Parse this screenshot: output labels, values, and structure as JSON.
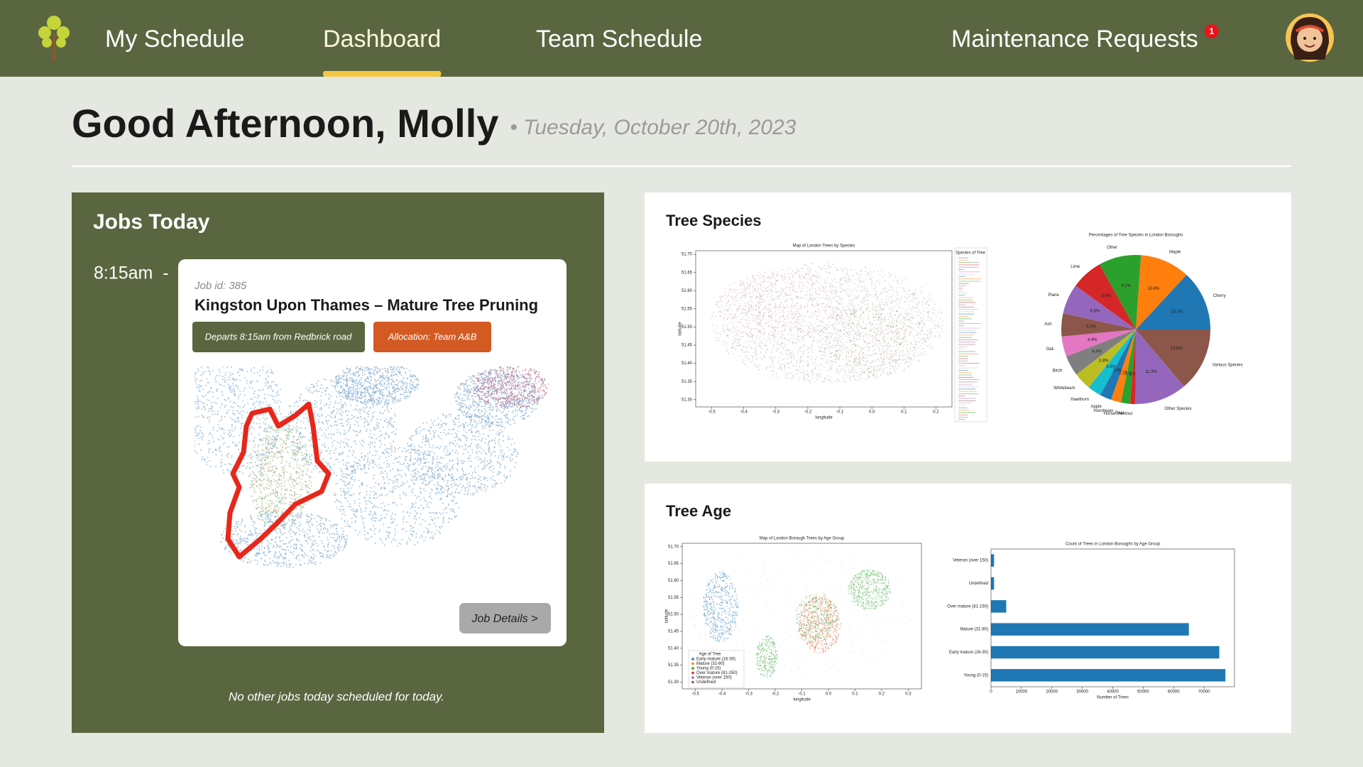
{
  "nav": {
    "items": [
      "My Schedule",
      "Dashboard",
      "Team Schedule",
      "Maintenance Requests"
    ],
    "active": 1,
    "badge": 1
  },
  "header": {
    "greeting": "Good Afternoon, Molly",
    "date": "• Tuesday, October 20th, 2023"
  },
  "jobs": {
    "title": "Jobs Today",
    "time": "8:15am  -",
    "job_id": "Job id: 385",
    "job_title": "Kingston Upon Thames – Mature Tree Pruning",
    "departs": "Departs 8:15am from Redbrick road",
    "allocation": "Allocation: Team A&B",
    "details": "Job Details >",
    "footer": "No other jobs today scheduled for today."
  },
  "species": {
    "title": "Tree Species",
    "map": {
      "type": "scatter-map",
      "title": "Map of London Trees by Species",
      "xlabel": "longitude",
      "ylabel": "latitude",
      "legend_title": "Species of Tree",
      "xlim": [
        -0.55,
        0.25
      ],
      "ylim": [
        51.28,
        51.71
      ],
      "xticks": [
        -0.5,
        -0.4,
        -0.3,
        -0.2,
        -0.1,
        {
          "value": 0,
          "label": "0.0"
        },
        0.1,
        0.2
      ],
      "yticks": [
        {
          "value": 51.3,
          "label": "51.30"
        },
        51.35,
        {
          "value": 51.4,
          "label": "51.40"
        },
        51.45,
        {
          "value": 51.5,
          "label": "51.50"
        },
        51.55,
        {
          "value": 51.6,
          "label": "51.60"
        },
        51.65,
        {
          "value": 51.7,
          "label": "51.70"
        }
      ]
    },
    "pie": {
      "type": "pie",
      "title": "Percentages of Tree Species in London Boroughs",
      "categories": [
        "Cherry",
        "Maple",
        "Other",
        "Lime",
        "Plane",
        "Ash",
        "Oak",
        "Birch",
        "Whitebeam",
        "Hawthorn",
        "Apple",
        "Hornbeam",
        "Pear",
        "Horse chestnut",
        "Other Species",
        "Various Species"
      ],
      "values": [
        13.1,
        10.8,
        9.2,
        6.9,
        6.5,
        5.0,
        4.4,
        4.4,
        3.8,
        3.0,
        2.5,
        2.2,
        2.0,
        1.1,
        11.3,
        13.8
      ],
      "value_labels": [
        "13.1%",
        "10.8%",
        "9.2%",
        "6.9%",
        "6.5%",
        "5.0%",
        "4.4%",
        "4.4%",
        "3.8%",
        "3.0%",
        "2.5%",
        "2.2%",
        "2.0%",
        "1.1%",
        "11.3%",
        "13.8%"
      ],
      "colors": [
        "#1f77b4",
        "#ff7f0e",
        "#2ca02c",
        "#d62728",
        "#9467bd",
        "#8c564b",
        "#e377c2",
        "#7f7f7f",
        "#bcbd22",
        "#17becf",
        "#1f77b4",
        "#ff7f0e",
        "#2ca02c",
        "#d62728",
        "#9467bd",
        "#8c564b"
      ]
    }
  },
  "age": {
    "title": "Tree Age",
    "map": {
      "type": "scatter-map",
      "title": "Map of London Borough Trees by Age Group",
      "xlabel": "longitude",
      "ylabel": "latitude",
      "legend_title": "Age of Tree",
      "legend": [
        "Early mature (16-30)",
        "Mature (31-80)",
        "Young (0-15)",
        "Over mature (81-150)",
        "Veteran (over 150)",
        "Undefined"
      ],
      "colors": [
        "#1f77b4",
        "#ff7f0e",
        "#2ca02c",
        "#d62728",
        "#9467bd",
        "#8c564b"
      ],
      "xlim": [
        -0.55,
        0.35
      ],
      "ylim": [
        51.28,
        51.71
      ],
      "xticks": [
        -0.5,
        -0.4,
        -0.3,
        -0.2,
        -0.1,
        {
          "value": 0,
          "label": "0.0"
        },
        0.1,
        0.2,
        0.3
      ],
      "yticks": [
        {
          "value": 51.3,
          "label": "51.30"
        },
        51.35,
        {
          "value": 51.4,
          "label": "51.40"
        },
        51.45,
        {
          "value": 51.5,
          "label": "51.50"
        },
        51.55,
        {
          "value": 51.6,
          "label": "51.60"
        },
        51.65,
        {
          "value": 51.7,
          "label": "51.70"
        }
      ]
    },
    "bar": {
      "type": "barh",
      "title": "Count of Trees in London Boroughs by Age Group",
      "categories": [
        "Veteran (over 150)",
        "Undefined",
        "Over mature (81-150)",
        "Mature (31-80)",
        "Early mature (16-30)",
        "Young (0-15)"
      ],
      "values": [
        1000,
        1000,
        5000,
        65000,
        75000,
        77000
      ],
      "color": "#1f77b4",
      "xlabel": "Number of Trees",
      "xlim": [
        0,
        80000
      ],
      "xticks": [
        0,
        10000,
        20000,
        30000,
        40000,
        50000,
        60000,
        70000
      ]
    }
  }
}
